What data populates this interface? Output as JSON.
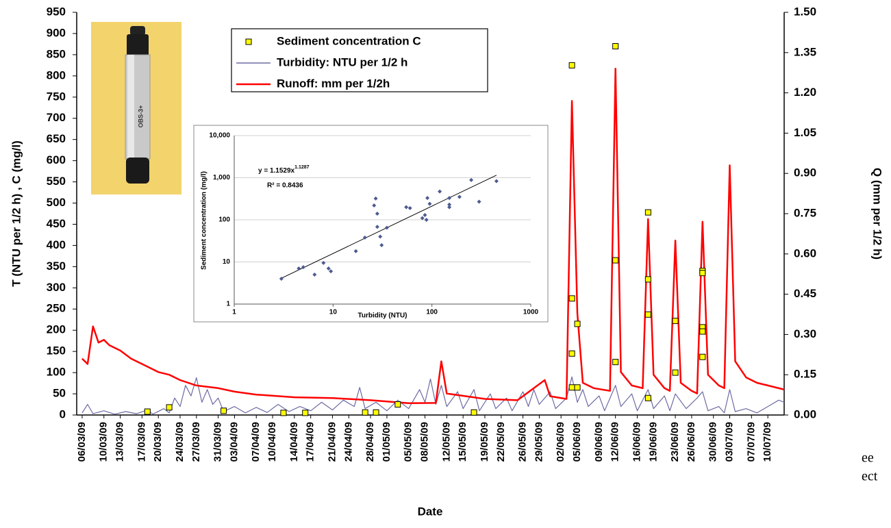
{
  "chart_data": [
    {
      "type": "line",
      "xlabel": "Date",
      "ylabel": "T (NTU per 1/2 h) ,  C (mg/l)",
      "y2label": "Q (mm per 1/2 h)",
      "xlim": [
        "05/03/09",
        "13/07/09"
      ],
      "xticks": [
        "06/03/09",
        "10/03/09",
        "13/03/09",
        "17/03/09",
        "20/03/09",
        "24/03/09",
        "27/03/09",
        "31/03/09",
        "03/04/09",
        "07/04/09",
        "10/04/09",
        "14/04/09",
        "17/04/09",
        "21/04/09",
        "24/04/09",
        "28/04/09",
        "01/05/09",
        "05/05/09",
        "08/05/09",
        "12/05/09",
        "15/05/09",
        "19/05/09",
        "22/05/09",
        "26/05/09",
        "29/05/09",
        "02/06/09",
        "05/06/09",
        "09/06/09",
        "12/06/09",
        "16/06/09",
        "19/06/09",
        "23/06/09",
        "26/06/09",
        "30/06/09",
        "03/07/09",
        "07/07/09",
        "10/07/09"
      ],
      "ylim": [
        0,
        950
      ],
      "yticks": [
        0,
        50,
        100,
        150,
        200,
        250,
        300,
        350,
        400,
        450,
        500,
        550,
        600,
        650,
        700,
        750,
        800,
        850,
        900,
        950
      ],
      "y2lim": [
        0,
        1.5
      ],
      "y2ticks": [
        {
          "value": 0,
          "label": "0.00"
        },
        {
          "value": 0.15,
          "label": "0.15"
        },
        {
          "value": 0.3,
          "label": "0.30"
        },
        {
          "value": 0.45,
          "label": "0.45"
        },
        {
          "value": 0.6,
          "label": "0.60"
        },
        {
          "value": 0.75,
          "label": "0.75"
        },
        {
          "value": 0.9,
          "label": "0.90"
        },
        {
          "value": 1.05,
          "label": "1.05"
        },
        {
          "value": 1.2,
          "label": "1.20"
        },
        {
          "value": 1.35,
          "label": "1.35"
        },
        {
          "value": 1.5,
          "label": "1.50"
        }
      ],
      "legend": "top",
      "series": [
        {
          "name": "Sediment concentration C",
          "kind": "scatter",
          "color": "#ffff00",
          "x": [
            "18/03/09",
            "22/03/09",
            "01/04/09",
            "12/04/09",
            "16/04/09",
            "27/04/09",
            "29/04/09",
            "03/05/09",
            "17/05/09",
            "04/06/09",
            "04/06/09",
            "04/06/09",
            "04/06/09",
            "05/06/09",
            "05/06/09",
            "12/06/09",
            "12/06/09",
            "12/06/09",
            "18/06/09",
            "18/06/09",
            "18/06/09",
            "18/06/09",
            "23/06/09",
            "23/06/09",
            "28/06/09",
            "28/06/09",
            "28/06/09",
            "28/06/09",
            "28/06/09"
          ],
          "values": [
            8,
            18,
            10,
            5,
            5,
            6,
            6,
            25,
            6,
            825,
            275,
            145,
            65,
            215,
            65,
            870,
            365,
            125,
            478,
            320,
            237,
            40,
            222,
            100,
            340,
            335,
            207,
            197,
            137
          ]
        },
        {
          "name": "Turbidity: NTU per 1/2 h",
          "kind": "line",
          "color": "#6b6ba3",
          "x": [
            "06/03/09",
            "07/03/09",
            "08/03/09",
            "10/03/09",
            "12/03/09",
            "14/03/09",
            "16/03/09",
            "18/03/09",
            "19/03/09",
            "21/03/09",
            "22/03/09",
            "23/03/09",
            "24/03/09",
            "25/03/09",
            "26/03/09",
            "27/03/09",
            "28/03/09",
            "29/03/09",
            "30/03/09",
            "31/03/09",
            "01/04/09",
            "03/04/09",
            "05/04/09",
            "07/04/09",
            "09/04/09",
            "11/04/09",
            "13/04/09",
            "15/04/09",
            "17/04/09",
            "19/04/09",
            "21/04/09",
            "23/04/09",
            "25/04/09",
            "26/04/09",
            "27/04/09",
            "29/04/09",
            "01/05/09",
            "03/05/09",
            "05/05/09",
            "07/05/09",
            "08/05/09",
            "09/05/09",
            "10/05/09",
            "11/05/09",
            "12/05/09",
            "14/05/09",
            "15/05/09",
            "17/05/09",
            "18/05/09",
            "20/05/09",
            "21/05/09",
            "23/05/09",
            "24/05/09",
            "26/05/09",
            "27/05/09",
            "28/05/09",
            "29/05/09",
            "31/05/09",
            "01/06/09",
            "03/06/09",
            "04/06/09",
            "05/06/09",
            "06/06/09",
            "07/06/09",
            "09/06/09",
            "10/06/09",
            "12/06/09",
            "13/06/09",
            "15/06/09",
            "16/06/09",
            "18/06/09",
            "19/06/09",
            "21/06/09",
            "22/06/09",
            "23/06/09",
            "25/06/09",
            "27/06/09",
            "28/06/09",
            "29/06/09",
            "01/07/09",
            "02/07/09",
            "03/07/09",
            "04/07/09",
            "06/07/09",
            "08/07/09",
            "10/07/09",
            "12/07/09",
            "13/07/09"
          ],
          "values": [
            5,
            25,
            3,
            10,
            2,
            8,
            3,
            12,
            2,
            15,
            5,
            40,
            20,
            70,
            45,
            88,
            30,
            60,
            25,
            40,
            8,
            20,
            5,
            18,
            6,
            25,
            8,
            20,
            10,
            30,
            12,
            35,
            20,
            65,
            15,
            30,
            10,
            35,
            15,
            60,
            30,
            85,
            25,
            70,
            20,
            55,
            15,
            60,
            10,
            50,
            15,
            40,
            10,
            55,
            20,
            60,
            25,
            55,
            15,
            40,
            90,
            30,
            60,
            20,
            45,
            10,
            70,
            20,
            50,
            10,
            60,
            15,
            45,
            10,
            50,
            15,
            40,
            55,
            10,
            20,
            5,
            60,
            8,
            15,
            5,
            20,
            35,
            30
          ]
        },
        {
          "name": "Runoff: mm per 1/2h",
          "kind": "line",
          "axis": "y2",
          "color": "#ff0000",
          "x": [
            "06/03/09",
            "07/03/09",
            "08/03/09",
            "09/03/09",
            "10/03/09",
            "11/03/09",
            "13/03/09",
            "15/03/09",
            "17/03/09",
            "20/03/09",
            "22/03/09",
            "24/03/09",
            "27/03/09",
            "31/03/09",
            "03/04/09",
            "07/04/09",
            "14/04/09",
            "21/04/09",
            "28/04/09",
            "05/05/09",
            "10/05/09",
            "11/05/09",
            "12/05/09",
            "19/05/09",
            "25/05/09",
            "30/05/09",
            "31/05/09",
            "03/06/09",
            "04/06/09",
            "05/06/09",
            "06/06/09",
            "08/06/09",
            "11/06/09",
            "12/06/09",
            "13/06/09",
            "15/06/09",
            "17/06/09",
            "18/06/09",
            "19/06/09",
            "21/06/09",
            "22/06/09",
            "23/06/09",
            "24/06/09",
            "26/06/09",
            "27/06/09",
            "28/06/09",
            "29/06/09",
            "01/07/09",
            "02/07/09",
            "03/07/09",
            "04/07/09",
            "06/07/09",
            "08/07/09",
            "10/07/09",
            "13/07/09"
          ],
          "values": [
            0.21,
            0.19,
            0.33,
            0.27,
            0.28,
            0.26,
            0.24,
            0.21,
            0.19,
            0.16,
            0.15,
            0.13,
            0.11,
            0.1,
            0.087,
            0.076,
            0.066,
            0.063,
            0.055,
            0.044,
            0.045,
            0.2,
            0.08,
            0.06,
            0.055,
            0.13,
            0.07,
            0.06,
            1.17,
            0.38,
            0.12,
            0.1,
            0.09,
            1.29,
            0.16,
            0.11,
            0.1,
            0.73,
            0.15,
            0.1,
            0.09,
            0.65,
            0.12,
            0.09,
            0.08,
            0.72,
            0.15,
            0.11,
            0.1,
            0.93,
            0.2,
            0.14,
            0.12,
            0.11,
            0.095
          ]
        }
      ],
      "photo_label": "OBS-3+",
      "background_text": [
        "ee",
        "ect"
      ]
    },
    {
      "type": "scatter",
      "xlabel": "Turbidity (NTU)",
      "ylabel": "Sediment concentration (mg/l)",
      "xlog": true,
      "ylog": true,
      "xlim": [
        1,
        1000
      ],
      "ylim": [
        1,
        10000
      ],
      "xticks": [
        1,
        10,
        100,
        1000
      ],
      "yticks": [
        1,
        10,
        100,
        {
          "value": 1000,
          "label": "1,000"
        },
        {
          "value": 10000,
          "label": "10,000"
        }
      ],
      "grid": true,
      "color": "#4d5b8f",
      "x": [
        3,
        4.5,
        5,
        6.5,
        8,
        9,
        9.5,
        17,
        21,
        27,
        26,
        28,
        28,
        30,
        31,
        35,
        55,
        60,
        80,
        85,
        88,
        95,
        90,
        120,
        150,
        150,
        150,
        190,
        250,
        300,
        450
      ],
      "values": [
        4,
        7,
        7.5,
        5,
        9.5,
        7,
        6,
        18,
        38,
        320,
        220,
        140,
        68,
        40,
        25,
        65,
        200,
        190,
        110,
        130,
        100,
        240,
        330,
        470,
        330,
        230,
        200,
        350,
        880,
        270,
        830
      ],
      "trendline": {
        "x": [
          3,
          450
        ],
        "values": [
          4.1,
          1150
        ],
        "color": "#000000"
      },
      "equation": "y = 1.1529x",
      "equation_exponent": "1.1287",
      "r2": "R² = 0.8436"
    }
  ]
}
